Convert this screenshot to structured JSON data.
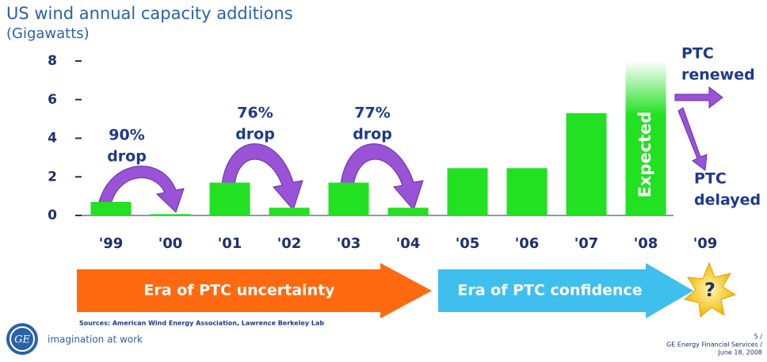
{
  "chart_data": {
    "type": "bar",
    "title": "US wind annual capacity additions",
    "subtitle": "(Gigawatts)",
    "categories": [
      "'99",
      "'00",
      "'01",
      "'02",
      "'03",
      "'04",
      "'05",
      "'06",
      "'07",
      "'08",
      "'09"
    ],
    "values": [
      0.7,
      0.07,
      1.7,
      0.4,
      1.7,
      0.4,
      2.45,
      2.45,
      5.3,
      8,
      null
    ],
    "color": "#22e022",
    "ylim": [
      0,
      8
    ],
    "yticks": [
      0,
      2,
      4,
      6,
      8
    ],
    "grid": false,
    "annotations": {
      "drop_99": [
        "90%",
        "drop"
      ],
      "drop_01": [
        "76%",
        "drop"
      ],
      "drop_03": [
        "77%",
        "drop"
      ],
      "expected": "Expected",
      "renewed": [
        "PTC",
        "renewed"
      ],
      "delayed": [
        "PTC",
        "delayed"
      ],
      "era_uncertainty": "Era of PTC uncertainty",
      "era_confidence": "Era of PTC confidence",
      "question": "?"
    },
    "source": "Sources: American Wind Energy Association, Lawrence Berkeley Lab",
    "tagline": "imagination at work",
    "footer": [
      "5 /",
      "GE Energy Financial Services /",
      "June 18, 2008"
    ]
  }
}
